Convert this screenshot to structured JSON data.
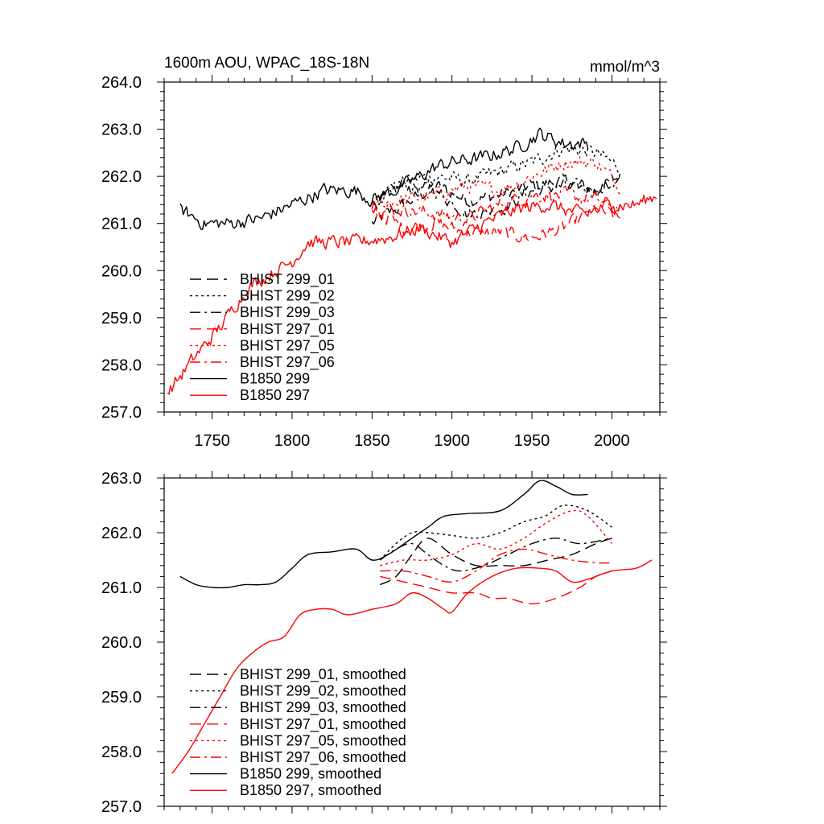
{
  "chart_data": [
    {
      "type": "line",
      "title": "1600m AOU, WPAC_18S-18N",
      "units": "mmol/m^3",
      "xlabel": "",
      "ylabel": "",
      "xlim": [
        1720,
        2030
      ],
      "ylim": [
        257.0,
        264.0
      ],
      "xticks": [
        1750,
        1800,
        1850,
        1900,
        1950,
        2000
      ],
      "xtick_labels": [
        "1750",
        "1800",
        "1850",
        "1900",
        "1950",
        "2000"
      ],
      "yticks": [
        257.0,
        258.0,
        259.0,
        260.0,
        261.0,
        262.0,
        263.0,
        264.0
      ],
      "ytick_labels": [
        "257.0",
        "258.0",
        "259.0",
        "260.0",
        "261.0",
        "262.0",
        "263.0",
        "264.0"
      ],
      "legend_position": "bottom-left",
      "noise": 0.16,
      "series": [
        {
          "name": "BHIST 299_01",
          "color": "#000000",
          "dash": "dash",
          "x": [
            1850,
            1870,
            1890,
            1910,
            1930,
            1950,
            1970,
            1990,
            2005
          ],
          "values": [
            261.0,
            261.4,
            261.8,
            261.5,
            261.6,
            261.8,
            261.9,
            261.7,
            262.0
          ]
        },
        {
          "name": "BHIST 299_02",
          "color": "#000000",
          "dash": "dot",
          "x": [
            1850,
            1870,
            1890,
            1910,
            1930,
            1950,
            1970,
            1990,
            2005
          ],
          "values": [
            261.5,
            261.9,
            262.0,
            261.9,
            262.1,
            262.3,
            262.6,
            262.5,
            262.2
          ]
        },
        {
          "name": "BHIST 299_03",
          "color": "#000000",
          "dash": "dashdot",
          "x": [
            1850,
            1870,
            1890,
            1910,
            1930,
            1950,
            1970,
            1990,
            2005
          ],
          "values": [
            261.4,
            261.8,
            261.7,
            261.2,
            261.3,
            261.7,
            261.8,
            261.7,
            261.9
          ]
        },
        {
          "name": "BHIST 297_01",
          "color": "#ff0000",
          "dash": "dash",
          "x": [
            1850,
            1870,
            1890,
            1910,
            1930,
            1950,
            1970,
            1990,
            2005
          ],
          "values": [
            261.3,
            260.9,
            261.0,
            260.8,
            260.8,
            260.7,
            260.9,
            261.3,
            261.1
          ]
        },
        {
          "name": "BHIST 297_05",
          "color": "#ff0000",
          "dash": "dot",
          "x": [
            1850,
            1870,
            1890,
            1910,
            1930,
            1950,
            1970,
            1990,
            2005
          ],
          "values": [
            261.4,
            261.5,
            261.6,
            261.8,
            261.7,
            262.0,
            262.3,
            262.3,
            261.8
          ]
        },
        {
          "name": "BHIST 297_06",
          "color": "#ff0000",
          "dash": "dashdot",
          "x": [
            1850,
            1870,
            1890,
            1910,
            1930,
            1950,
            1970,
            1990,
            2005
          ],
          "values": [
            261.3,
            261.3,
            261.2,
            261.1,
            261.4,
            261.6,
            261.6,
            261.5,
            261.3
          ]
        },
        {
          "name": "B1850 299",
          "color": "#000000",
          "dash": "solid",
          "x": [
            1730,
            1745,
            1760,
            1780,
            1800,
            1820,
            1840,
            1850,
            1870,
            1890,
            1900,
            1920,
            1940,
            1955,
            1970,
            1985
          ],
          "values": [
            261.3,
            261.0,
            261.0,
            261.1,
            261.4,
            261.7,
            261.7,
            261.5,
            261.8,
            262.2,
            262.3,
            262.4,
            262.6,
            262.9,
            262.7,
            262.7
          ]
        },
        {
          "name": "B1850 297",
          "color": "#ff0000",
          "dash": "solid",
          "x": [
            1722,
            1740,
            1755,
            1765,
            1775,
            1790,
            1800,
            1810,
            1825,
            1840,
            1860,
            1880,
            1900,
            1920,
            1940,
            1960,
            1980,
            2000,
            2015,
            2028
          ],
          "values": [
            257.4,
            258.2,
            258.8,
            259.3,
            259.7,
            260.0,
            260.2,
            260.6,
            260.6,
            260.6,
            260.7,
            260.9,
            260.6,
            261.0,
            261.3,
            261.4,
            261.2,
            261.4,
            261.4,
            261.6
          ]
        }
      ]
    },
    {
      "type": "line",
      "title": "",
      "xlabel": "",
      "ylabel": "",
      "xlim": [
        1720,
        2030
      ],
      "ylim": [
        257.0,
        263.0
      ],
      "xticks": [
        1750,
        1800,
        1850,
        1900,
        1950,
        2000
      ],
      "yticks": [
        257.0,
        258.0,
        259.0,
        260.0,
        261.0,
        262.0,
        263.0
      ],
      "ytick_labels": [
        "257.0",
        "258.0",
        "259.0",
        "260.0",
        "261.0",
        "262.0",
        "263.0"
      ],
      "legend_position": "bottom-left",
      "noise": 0,
      "series": [
        {
          "name": "BHIST 299_01, smoothed",
          "color": "#000000",
          "dash": "dash",
          "x": [
            1855,
            1865,
            1875,
            1885,
            1900,
            1915,
            1930,
            1945,
            1960,
            1975,
            1990,
            2000
          ],
          "values": [
            261.05,
            261.2,
            261.6,
            261.9,
            261.6,
            261.4,
            261.4,
            261.4,
            261.5,
            261.6,
            261.8,
            261.9
          ]
        },
        {
          "name": "BHIST 299_02, smoothed",
          "color": "#000000",
          "dash": "dot",
          "x": [
            1855,
            1865,
            1875,
            1885,
            1900,
            1915,
            1930,
            1945,
            1958,
            1970,
            1985,
            2000
          ],
          "values": [
            261.5,
            261.8,
            262.0,
            262.0,
            261.95,
            261.9,
            262.0,
            262.2,
            262.3,
            262.5,
            262.4,
            262.1
          ]
        },
        {
          "name": "BHIST 299_03, smoothed",
          "color": "#000000",
          "dash": "dashdot",
          "x": [
            1855,
            1865,
            1875,
            1885,
            1895,
            1905,
            1920,
            1935,
            1950,
            1965,
            1980,
            2000
          ],
          "values": [
            261.5,
            261.7,
            261.8,
            261.6,
            261.4,
            261.3,
            261.4,
            261.6,
            261.8,
            261.9,
            261.8,
            261.9
          ]
        },
        {
          "name": "BHIST 297_01, smoothed",
          "color": "#ff0000",
          "dash": "dash",
          "x": [
            1855,
            1870,
            1885,
            1900,
            1915,
            1925,
            1935,
            1950,
            1965,
            1980,
            1990,
            2000
          ],
          "values": [
            261.2,
            261.1,
            261.0,
            260.9,
            260.9,
            260.8,
            260.8,
            260.7,
            260.8,
            261.0,
            261.2,
            261.3
          ]
        },
        {
          "name": "BHIST 297_05, smoothed",
          "color": "#ff0000",
          "dash": "dot",
          "x": [
            1855,
            1870,
            1885,
            1900,
            1915,
            1930,
            1945,
            1960,
            1975,
            1985,
            2000
          ],
          "values": [
            261.4,
            261.5,
            261.5,
            261.6,
            261.8,
            261.7,
            261.9,
            262.2,
            262.4,
            262.3,
            261.8
          ]
        },
        {
          "name": "BHIST 297_06, smoothed",
          "color": "#ff0000",
          "dash": "dashdot",
          "x": [
            1855,
            1870,
            1885,
            1900,
            1915,
            1930,
            1945,
            1960,
            1975,
            1990,
            2000
          ],
          "values": [
            261.3,
            261.3,
            261.2,
            261.1,
            261.3,
            261.6,
            261.7,
            261.6,
            261.5,
            261.45,
            261.45
          ]
        },
        {
          "name": "B1850 299, smoothed",
          "color": "#000000",
          "dash": "solid",
          "x": [
            1730,
            1740,
            1750,
            1760,
            1770,
            1780,
            1790,
            1800,
            1810,
            1825,
            1840,
            1850,
            1860,
            1875,
            1885,
            1895,
            1910,
            1930,
            1945,
            1955,
            1965,
            1975,
            1985
          ],
          "values": [
            261.2,
            261.05,
            261.0,
            261.0,
            261.05,
            261.05,
            261.1,
            261.35,
            261.6,
            261.65,
            261.7,
            261.5,
            261.6,
            261.9,
            262.1,
            262.3,
            262.35,
            262.4,
            262.7,
            262.95,
            262.85,
            262.7,
            262.7
          ]
        },
        {
          "name": "B1850 297, smoothed",
          "color": "#ff0000",
          "dash": "solid",
          "x": [
            1725,
            1735,
            1745,
            1755,
            1765,
            1775,
            1785,
            1795,
            1805,
            1815,
            1825,
            1835,
            1850,
            1865,
            1875,
            1885,
            1895,
            1900,
            1910,
            1925,
            1940,
            1955,
            1965,
            1975,
            1985,
            2000,
            2015,
            2025
          ],
          "values": [
            257.6,
            258.0,
            258.5,
            259.0,
            259.5,
            259.8,
            260.0,
            260.1,
            260.5,
            260.6,
            260.6,
            260.5,
            260.6,
            260.7,
            260.9,
            260.8,
            260.6,
            260.55,
            260.9,
            261.2,
            261.35,
            261.35,
            261.3,
            261.1,
            261.15,
            261.3,
            261.35,
            261.5
          ]
        }
      ]
    }
  ]
}
